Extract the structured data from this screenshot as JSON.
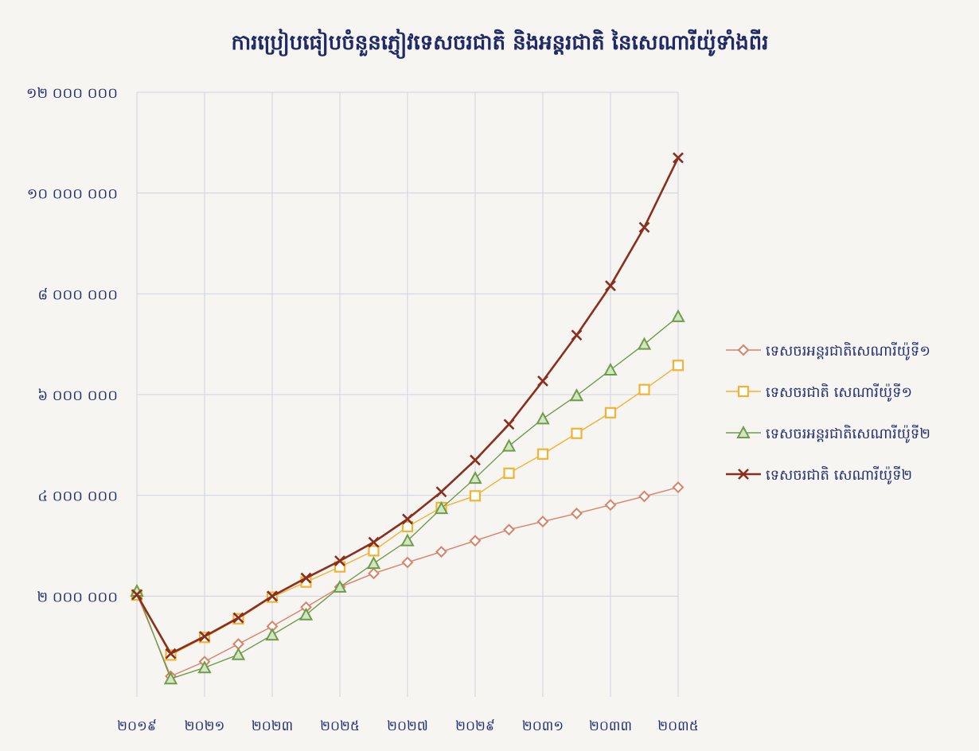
{
  "chart_data": {
    "type": "line",
    "title": "ការប្រៀបធៀបចំនួនភ្ញៀវទេសចរជាតិ និងអន្តរជាតិ នៃសេណារីយ៉ូទាំងពីរ",
    "xlabel": "",
    "ylabel": "",
    "x": [
      2019,
      2020,
      2021,
      2022,
      2023,
      2024,
      2025,
      2026,
      2027,
      2028,
      2029,
      2030,
      2031,
      2032,
      2033,
      2034,
      2035
    ],
    "x_tick_labels": [
      "២០១៩",
      "២០២១",
      "២០២៣",
      "២០២៥",
      "២០២៧",
      "២០២៩",
      "២០៣១",
      "២០៣៣",
      "២០៣៥"
    ],
    "x_tick_values": [
      2019,
      2021,
      2023,
      2025,
      2027,
      2029,
      2031,
      2033,
      2035
    ],
    "ylim": [
      0,
      12000000
    ],
    "y_ticks": [
      2000000,
      4000000,
      6000000,
      8000000,
      10000000,
      12000000
    ],
    "y_tick_labels": [
      "២ ០០០ ០០០",
      "៤ ០០០ ០០០",
      "៦ ០០០ ០០០",
      "៨ ០០០ ០០០",
      "១០ ០០០ ០០០",
      "១២ ០០០ ០០០"
    ],
    "grid": true,
    "legend_position": "right",
    "series": [
      {
        "name": "ទេសចរអន្តរជាតិសេណារីយ៉ូទី១",
        "color": "#d9826a",
        "marker": "diamond",
        "values": [
          2040000,
          410000,
          700000,
          1050000,
          1400000,
          1780000,
          2180000,
          2450000,
          2670000,
          2880000,
          3100000,
          3320000,
          3480000,
          3640000,
          3810000,
          3980000,
          4160000
        ]
      },
      {
        "name": "ទេសចរជាតិ សេណារីយ៉ូទី១",
        "color": "#f2b233",
        "marker": "square",
        "values": [
          2020000,
          830000,
          1180000,
          1550000,
          1980000,
          2280000,
          2580000,
          2900000,
          3380000,
          3760000,
          3990000,
          4440000,
          4820000,
          5230000,
          5640000,
          6100000,
          6580000
        ]
      },
      {
        "name": "ទេសចរអន្តរជាតិសេណារីយ៉ូទី២",
        "color": "#6f9c4a",
        "marker": "triangle",
        "values": [
          2100000,
          360000,
          580000,
          840000,
          1230000,
          1630000,
          2180000,
          2650000,
          3100000,
          3740000,
          4340000,
          4980000,
          5520000,
          5980000,
          6490000,
          7000000,
          7550000
        ]
      },
      {
        "name": "ទេសចរជាតិ សេណារីយ៉ូទី២",
        "color": "#8a2f1e",
        "marker": "x",
        "values": [
          2030000,
          860000,
          1200000,
          1570000,
          2000000,
          2360000,
          2700000,
          3070000,
          3530000,
          4070000,
          4700000,
          5410000,
          6270000,
          7180000,
          8160000,
          9320000,
          10700000
        ]
      }
    ]
  }
}
